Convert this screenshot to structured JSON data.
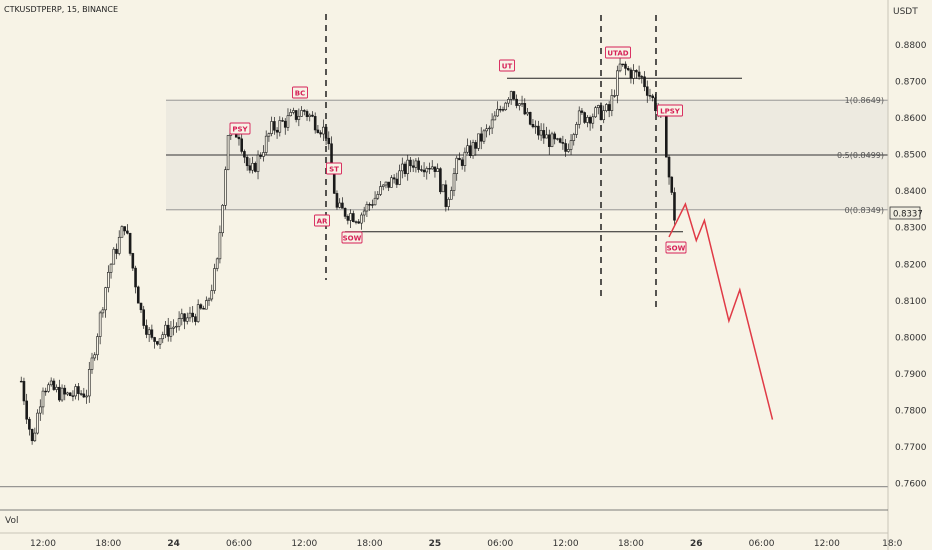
{
  "header": {
    "symbol_line": "CTKUSDTPERP, 15, BINANCE"
  },
  "y_axis": {
    "currency": "USDT",
    "ticks": [
      "0.8800",
      "0.8700",
      "0.8600",
      "0.8500",
      "0.8400",
      "0.8300",
      "0.8200",
      "0.8100",
      "0.8000",
      "0.7900",
      "0.7800",
      "0.7700",
      "0.7600"
    ],
    "last_price": "0.8337"
  },
  "x_axis": {
    "ticks": [
      "12:00",
      "18:00",
      "24",
      "06:00",
      "12:00",
      "18:00",
      "25",
      "06:00",
      "12:00",
      "18:00",
      "26",
      "06:00",
      "12:00",
      "18:0"
    ]
  },
  "volume_pane": {
    "label": "Vol"
  },
  "colors": {
    "background": "#f7f3e6",
    "candle": "#1a1a1a",
    "marker": "#d61f56",
    "projection": "#e03a46",
    "range_fill": "#ebe8de"
  },
  "chart_data": {
    "type": "candlestick",
    "title": "CTKUSDTPERP, 15, BINANCE",
    "ylabel": "USDT",
    "ylim": [
      0.7563,
      0.8914
    ],
    "x_range": [
      "23 12:00",
      "26 18:00"
    ],
    "fib_levels": [
      {
        "label": "1(0.8649)",
        "value": 0.8649
      },
      {
        "label": "0.5(0.8499)",
        "value": 0.8499
      },
      {
        "label": "0(0.8349)",
        "value": 0.8349
      }
    ],
    "horizontal_levels": [
      0.8709,
      0.8289,
      0.7592
    ],
    "wyckoff_markers": [
      {
        "label": "PSY",
        "time": "24 06:00",
        "price": 0.86
      },
      {
        "label": "BC",
        "time": "24 12:00",
        "price": 0.8665
      },
      {
        "label": "ST",
        "time": "24 16:30",
        "price": 0.8415
      },
      {
        "label": "AR",
        "time": "24 15:00",
        "price": 0.8325
      },
      {
        "label": "SOW",
        "time": "24 17:00",
        "price": 0.8285
      },
      {
        "label": "UT",
        "time": "25 08:30",
        "price": 0.8735
      },
      {
        "label": "UTAD",
        "time": "25 18:00",
        "price": 0.8785
      },
      {
        "label": "LPSY",
        "time": "25 20:30",
        "price": 0.8615
      },
      {
        "label": "SOW",
        "time": "25 21:30",
        "price": 0.8255
      }
    ],
    "projection": [
      {
        "time": "25 21:30",
        "price": 0.8275
      },
      {
        "time": "25 23:00",
        "price": 0.8365
      },
      {
        "time": "26 00:00",
        "price": 0.8265
      },
      {
        "time": "26 00:45",
        "price": 0.832
      },
      {
        "time": "26 03:00",
        "price": 0.8045
      },
      {
        "time": "26 04:00",
        "price": 0.813
      },
      {
        "time": "26 07:00",
        "price": 0.7775
      }
    ],
    "price_path": [
      {
        "time": "23 10:00",
        "price": 0.788
      },
      {
        "time": "23 11:00",
        "price": 0.771
      },
      {
        "time": "23 12:00",
        "price": 0.787
      },
      {
        "time": "23 14:00",
        "price": 0.784
      },
      {
        "time": "23 16:00",
        "price": 0.785
      },
      {
        "time": "23 18:00",
        "price": 0.818
      },
      {
        "time": "23 19:30",
        "price": 0.831
      },
      {
        "time": "23 21:00",
        "price": 0.807
      },
      {
        "time": "23 22:00",
        "price": 0.799
      },
      {
        "time": "24 00:00",
        "price": 0.803
      },
      {
        "time": "24 03:00",
        "price": 0.808
      },
      {
        "time": "24 04:00",
        "price": 0.82
      },
      {
        "time": "24 05:00",
        "price": 0.856
      },
      {
        "time": "24 06:00",
        "price": 0.856
      },
      {
        "time": "24 07:00",
        "price": 0.844
      },
      {
        "time": "24 09:00",
        "price": 0.857
      },
      {
        "time": "24 12:00",
        "price": 0.862
      },
      {
        "time": "24 14:00",
        "price": 0.856
      },
      {
        "time": "24 15:00",
        "price": 0.835
      },
      {
        "time": "24 17:00",
        "price": 0.833
      },
      {
        "time": "24 19:00",
        "price": 0.84
      },
      {
        "time": "24 22:00",
        "price": 0.848
      },
      {
        "time": "25 00:00",
        "price": 0.847
      },
      {
        "time": "25 01:00",
        "price": 0.837
      },
      {
        "time": "25 02:00",
        "price": 0.847
      },
      {
        "time": "25 05:00",
        "price": 0.857
      },
      {
        "time": "25 07:00",
        "price": 0.868
      },
      {
        "time": "25 09:00",
        "price": 0.857
      },
      {
        "time": "25 12:00",
        "price": 0.851
      },
      {
        "time": "25 13:00",
        "price": 0.86
      },
      {
        "time": "25 16:00",
        "price": 0.862
      },
      {
        "time": "25 17:00",
        "price": 0.874
      },
      {
        "time": "25 19:00",
        "price": 0.871
      },
      {
        "time": "25 21:00",
        "price": 0.859
      },
      {
        "time": "25 21:30",
        "price": 0.844
      },
      {
        "time": "25 22:00",
        "price": 0.833
      }
    ]
  }
}
